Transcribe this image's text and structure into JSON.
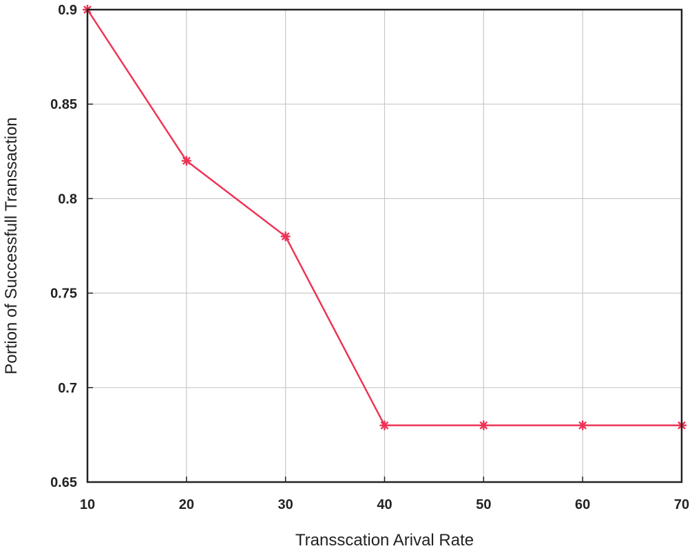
{
  "chart_data": {
    "type": "line",
    "title": "",
    "xlabel": "Transscation Arival Rate",
    "ylabel": "Portion of Successfull Transsaction",
    "xlim": [
      10,
      70
    ],
    "ylim": [
      0.65,
      0.9
    ],
    "x_ticks": [
      "10",
      "20",
      "30",
      "40",
      "50",
      "60",
      "70"
    ],
    "y_ticks": [
      "0.65",
      "0.7",
      "0.75",
      "0.8",
      "0.85",
      "0.9"
    ],
    "grid": true,
    "legend": "none",
    "series": [
      {
        "color": "#ee3355",
        "marker": "asterisk",
        "x": [
          10,
          20,
          30,
          40,
          50,
          60,
          70
        ],
        "y": [
          0.9,
          0.82,
          0.78,
          0.68,
          0.68,
          0.68,
          0.68
        ]
      }
    ]
  }
}
